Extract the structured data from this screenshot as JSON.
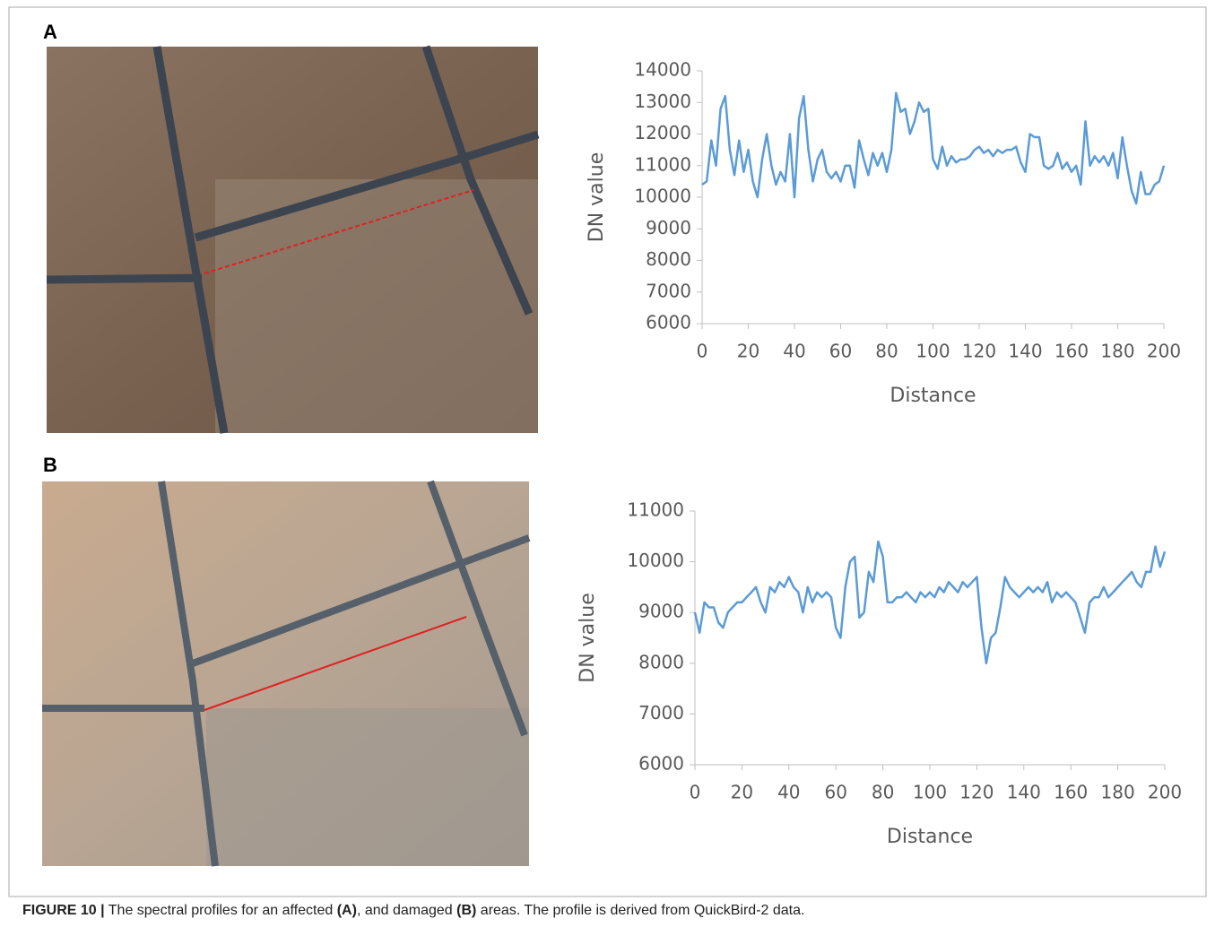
{
  "panels": [
    "A",
    "B"
  ],
  "caption": [
    "FIGURE 10 |",
    " The spectral profiles for an affected ",
    "(A)",
    ", and damaged ",
    "(B)",
    " areas. The profile is derived from QuickBird-2 data."
  ],
  "chart_data": [
    {
      "type": "line",
      "xlabel": "Distance",
      "ylabel": "DN value",
      "color": "#5b9bd5",
      "xlim": [
        0,
        200
      ],
      "xticks": [
        0,
        20,
        40,
        60,
        80,
        100,
        120,
        140,
        160,
        180,
        200
      ],
      "ylim": [
        6000,
        14000
      ],
      "yticks": [
        6000,
        7000,
        8000,
        9000,
        10000,
        11000,
        12000,
        13000,
        14000
      ],
      "x": [
        0,
        2,
        4,
        6,
        8,
        10,
        12,
        14,
        16,
        18,
        20,
        22,
        24,
        26,
        28,
        30,
        32,
        34,
        36,
        38,
        40,
        42,
        44,
        46,
        48,
        50,
        52,
        54,
        56,
        58,
        60,
        62,
        64,
        66,
        68,
        70,
        72,
        74,
        76,
        78,
        80,
        82,
        84,
        86,
        88,
        90,
        92,
        94,
        96,
        98,
        100,
        102,
        104,
        106,
        108,
        110,
        112,
        114,
        116,
        118,
        120,
        122,
        124,
        126,
        128,
        130,
        132,
        134,
        136,
        138,
        140,
        142,
        144,
        146,
        148,
        150,
        152,
        154,
        156,
        158,
        160,
        162,
        164,
        166,
        168,
        170,
        172,
        174,
        176,
        178,
        180,
        182,
        184,
        186,
        188,
        190,
        192,
        194,
        196,
        198,
        200
      ],
      "values": [
        10400,
        10500,
        11800,
        11000,
        12800,
        13200,
        11500,
        10700,
        11800,
        10800,
        11500,
        10500,
        10000,
        11200,
        12000,
        11000,
        10400,
        10800,
        10500,
        12000,
        10000,
        12500,
        13200,
        11500,
        10500,
        11200,
        11500,
        10800,
        10600,
        10800,
        10500,
        11000,
        11000,
        10300,
        11800,
        11200,
        10700,
        11400,
        11000,
        11400,
        10800,
        11500,
        13300,
        12700,
        12800,
        12000,
        12400,
        13000,
        12700,
        12800,
        11200,
        10900,
        11600,
        11000,
        11300,
        11100,
        11200,
        11200,
        11300,
        11500,
        11600,
        11400,
        11500,
        11300,
        11500,
        11400,
        11500,
        11500,
        11600,
        11100,
        10800,
        12000,
        11900,
        11900,
        11000,
        10900,
        11000,
        11400,
        10900,
        11100,
        10800,
        11000,
        10400,
        12400,
        11000,
        11300,
        11100,
        11300,
        11000,
        11400,
        10600,
        11900,
        11000,
        10200,
        9800,
        10800,
        10100,
        10100,
        10400,
        10500,
        11000
      ]
    },
    {
      "type": "line",
      "xlabel": "Distance",
      "ylabel": "DN value",
      "color": "#5b9bd5",
      "xlim": [
        0,
        200
      ],
      "xticks": [
        0,
        20,
        40,
        60,
        80,
        100,
        120,
        140,
        160,
        180,
        200
      ],
      "ylim": [
        6000,
        11000
      ],
      "yticks": [
        6000,
        7000,
        8000,
        9000,
        10000,
        11000
      ],
      "x": [
        0,
        2,
        4,
        6,
        8,
        10,
        12,
        14,
        16,
        18,
        20,
        22,
        24,
        26,
        28,
        30,
        32,
        34,
        36,
        38,
        40,
        42,
        44,
        46,
        48,
        50,
        52,
        54,
        56,
        58,
        60,
        62,
        64,
        66,
        68,
        70,
        72,
        74,
        76,
        78,
        80,
        82,
        84,
        86,
        88,
        90,
        92,
        94,
        96,
        98,
        100,
        102,
        104,
        106,
        108,
        110,
        112,
        114,
        116,
        118,
        120,
        122,
        124,
        126,
        128,
        130,
        132,
        134,
        136,
        138,
        140,
        142,
        144,
        146,
        148,
        150,
        152,
        154,
        156,
        158,
        160,
        162,
        164,
        166,
        168,
        170,
        172,
        174,
        176,
        178,
        180,
        182,
        184,
        186,
        188,
        190,
        192,
        194,
        196,
        198,
        200
      ],
      "values": [
        9000,
        8600,
        9200,
        9100,
        9100,
        8800,
        8700,
        9000,
        9100,
        9200,
        9200,
        9300,
        9400,
        9500,
        9200,
        9000,
        9500,
        9400,
        9600,
        9500,
        9700,
        9500,
        9400,
        9000,
        9500,
        9200,
        9400,
        9300,
        9400,
        9300,
        8700,
        8500,
        9500,
        10000,
        10100,
        8900,
        9000,
        9800,
        9600,
        10400,
        10100,
        9200,
        9200,
        9300,
        9300,
        9400,
        9300,
        9200,
        9400,
        9300,
        9400,
        9300,
        9500,
        9400,
        9600,
        9500,
        9400,
        9600,
        9500,
        9600,
        9700,
        8700,
        8000,
        8500,
        8600,
        9100,
        9700,
        9500,
        9400,
        9300,
        9400,
        9500,
        9400,
        9500,
        9400,
        9600,
        9200,
        9400,
        9300,
        9400,
        9300,
        9200,
        8900,
        8600,
        9200,
        9300,
        9300,
        9500,
        9300,
        9400,
        9500,
        9600,
        9700,
        9800,
        9600,
        9500,
        9800,
        9800,
        10300,
        9900,
        10200
      ]
    }
  ]
}
